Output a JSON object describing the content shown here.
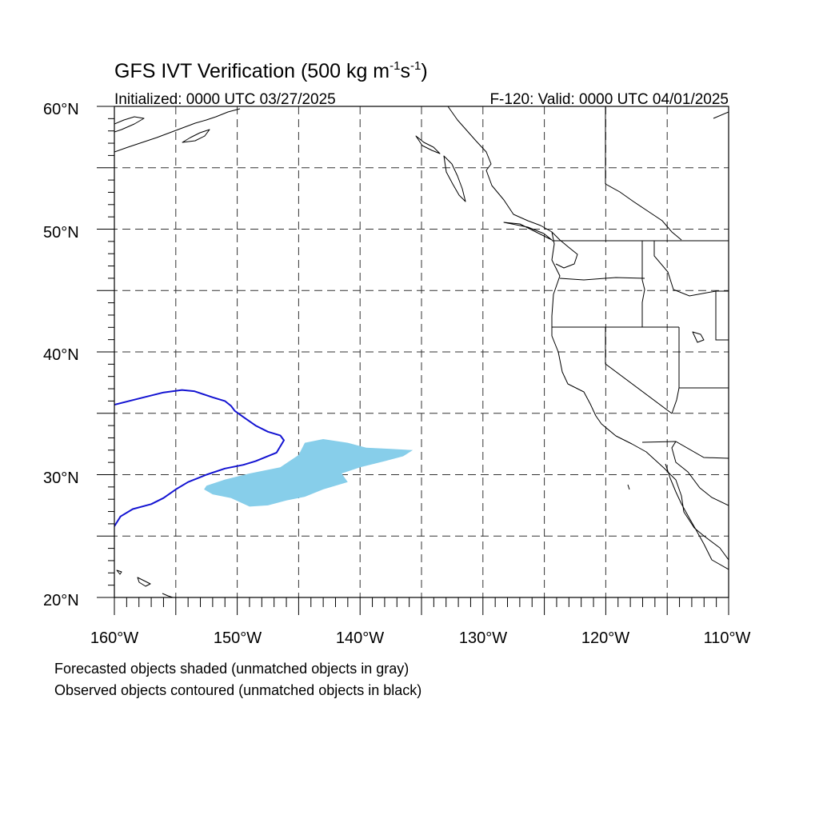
{
  "title": {
    "main": "GFS IVT Verification (500 kg m",
    "sup1": "-1",
    "mid": "s",
    "sup2": "-1",
    "close": ")"
  },
  "initialized": "Initialized: 0000 UTC 03/27/2025",
  "valid": "F-120: Valid: 0000 UTC 04/01/2025",
  "axes": {
    "lon_min": -160,
    "lon_max": -110,
    "lat_min": 20,
    "lat_max": 60,
    "lat_labels": [
      "60°N",
      "50°N",
      "40°N",
      "30°N",
      "20°N"
    ],
    "lon_labels": [
      "160°W",
      "150°W",
      "140°W",
      "130°W",
      "120°W",
      "110°W"
    ],
    "grid_spacing_deg": 5,
    "grid": "dashed"
  },
  "legend": {
    "line1": "Forecasted objects shaded (unmatched objects in gray)",
    "line2": "Observed objects contoured (unmatched objects in black)"
  },
  "colors": {
    "forecast_fill": "#87ceea",
    "observed_contour": "#1414d2"
  },
  "objects": {
    "forecast": {
      "shape": "shaded",
      "outline": [
        [
          -152.5,
          29.1
        ],
        [
          -151,
          29.6
        ],
        [
          -149,
          30.1
        ],
        [
          -146.5,
          30.6
        ],
        [
          -145,
          31.6
        ],
        [
          -144.5,
          32.6
        ],
        [
          -143,
          32.9
        ],
        [
          -141,
          32.6
        ],
        [
          -139.5,
          32.2
        ],
        [
          -137.5,
          32.1
        ],
        [
          -135.7,
          32.0
        ],
        [
          -136.5,
          31.5
        ],
        [
          -138,
          31.1
        ],
        [
          -140,
          30.6
        ],
        [
          -141.5,
          30.1
        ],
        [
          -141,
          29.4
        ],
        [
          -143,
          28.8
        ],
        [
          -144.5,
          28.2
        ],
        [
          -146,
          27.9
        ],
        [
          -147.5,
          27.5
        ],
        [
          -149,
          27.4
        ],
        [
          -150.5,
          28.1
        ],
        [
          -152,
          28.4
        ],
        [
          -152.7,
          28.8
        ]
      ]
    },
    "observed": {
      "shape": "contour",
      "outline": [
        [
          -160,
          35.7
        ],
        [
          -158,
          36.2
        ],
        [
          -156,
          36.7
        ],
        [
          -154.5,
          36.9
        ],
        [
          -153.5,
          36.8
        ],
        [
          -152,
          36.3
        ],
        [
          -151,
          36.0
        ],
        [
          -150.5,
          35.6
        ],
        [
          -150.2,
          35.2
        ],
        [
          -149.5,
          34.7
        ],
        [
          -148.5,
          34.0
        ],
        [
          -147.5,
          33.5
        ],
        [
          -146.5,
          33.2
        ],
        [
          -146.2,
          32.8
        ],
        [
          -146.8,
          31.8
        ],
        [
          -148.5,
          31.1
        ],
        [
          -149.5,
          30.8
        ],
        [
          -151,
          30.5
        ],
        [
          -152.5,
          30.0
        ],
        [
          -154,
          29.4
        ],
        [
          -155,
          28.8
        ],
        [
          -156,
          28.1
        ],
        [
          -157,
          27.6
        ],
        [
          -158.5,
          27.2
        ],
        [
          -159.5,
          26.6
        ],
        [
          -160,
          25.8
        ]
      ]
    }
  }
}
